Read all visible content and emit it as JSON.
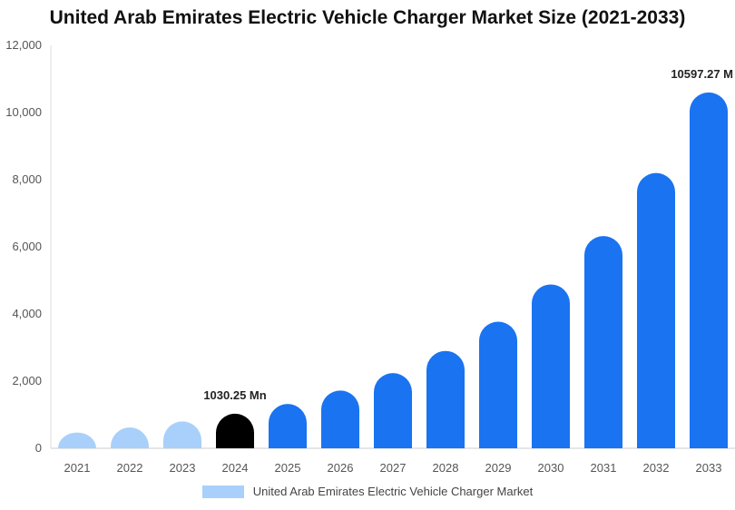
{
  "chart_data": {
    "type": "bar",
    "title": "United Arab Emirates Electric Vehicle Charger Market Size (2021-2033)",
    "categories": [
      "2021",
      "2022",
      "2023",
      "2024",
      "2025",
      "2026",
      "2027",
      "2028",
      "2029",
      "2030",
      "2031",
      "2032",
      "2033"
    ],
    "series": [
      {
        "name": "United Arab Emirates Electric Vehicle Charger Market",
        "values": [
          470,
          620,
          800,
          1030.25,
          1320,
          1720,
          2240,
          2900,
          3770,
          4880,
          6320,
          8200,
          10597.27
        ]
      }
    ],
    "bar_colors": [
      "#a8d0fb",
      "#a8d0fb",
      "#a8d0fb",
      "#000000",
      "#1a73f0",
      "#1a73f0",
      "#1a73f0",
      "#1a73f0",
      "#1a73f0",
      "#1a73f0",
      "#1a73f0",
      "#1a73f0",
      "#1a73f0"
    ],
    "y_ticks": [
      "0",
      "2,000",
      "4,000",
      "6,000",
      "8,000",
      "10,000",
      "12,000"
    ],
    "ylim": [
      0,
      12000
    ],
    "data_labels": [
      {
        "index": 3,
        "text": "1030.25 Mn"
      },
      {
        "index": 12,
        "text": "10597.27 M"
      }
    ],
    "legend": {
      "position": "bottom",
      "swatch_color": "#a8d0fb"
    },
    "grid": false
  }
}
